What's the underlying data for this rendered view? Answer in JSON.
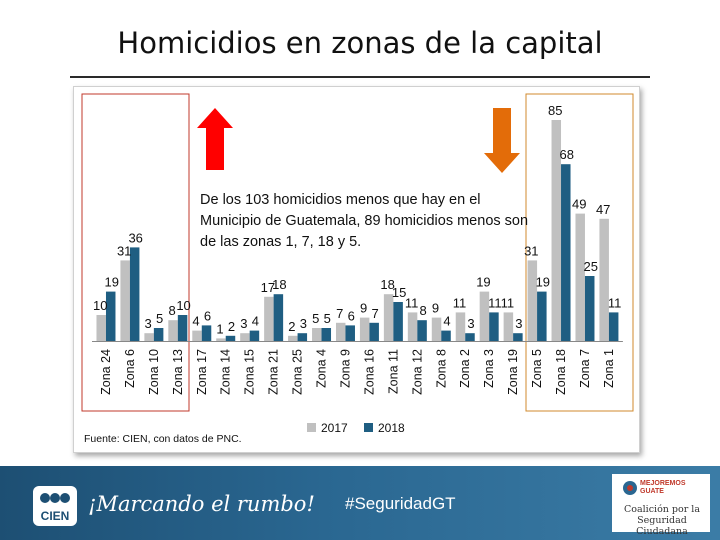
{
  "title": "Homicidios en zonas de la capital",
  "annotation": "De los 103 homicidios menos que hay en el Municipio de Guatemala, 89 homicidios menos son de las zonas 1, 7, 18 y 5.",
  "source": "Fuente: CIEN, con datos de PNC.",
  "footer": {
    "logo_text": "CIEN",
    "slogan": "¡Marcando el rumbo!",
    "hashtag": "#SeguridadGT",
    "coalition_brand_1": "MEJOREMOS",
    "coalition_brand_2": "GUATE",
    "coalition_name": "Coalición por la Seguridad Ciudadana"
  },
  "colors": {
    "s2017": "#c0c0c0",
    "s2018": "#1f5e82",
    "up_arrow": "#ff0000",
    "down_arrow": "#e36c09",
    "left_box": "#c0392b",
    "right_box": "#d08a2c"
  },
  "chart_data": {
    "type": "bar",
    "categories": [
      "Zona 24",
      "Zona 6",
      "Zona 10",
      "Zona 13",
      "Zona 17",
      "Zona 14",
      "Zona 15",
      "Zona 21",
      "Zona 25",
      "Zona 4",
      "Zona 9",
      "Zona 16",
      "Zona 11",
      "Zona 12",
      "Zona 8",
      "Zona 2",
      "Zona 3",
      "Zona 19",
      "Zona 5",
      "Zona 18",
      "Zona 7",
      "Zona 1"
    ],
    "series": [
      {
        "name": "2017",
        "values": [
          10,
          31,
          3,
          8,
          4,
          1,
          3,
          17,
          2,
          5,
          7,
          9,
          18,
          11,
          9,
          11,
          19,
          11,
          31,
          85,
          49,
          47
        ]
      },
      {
        "name": "2018",
        "values": [
          19,
          36,
          5,
          10,
          6,
          2,
          4,
          18,
          3,
          5,
          6,
          7,
          15,
          8,
          4,
          3,
          11,
          3,
          19,
          68,
          25,
          11
        ]
      }
    ],
    "legend_position": "bottom",
    "grid": false,
    "ylim": [
      0,
      90
    ]
  }
}
